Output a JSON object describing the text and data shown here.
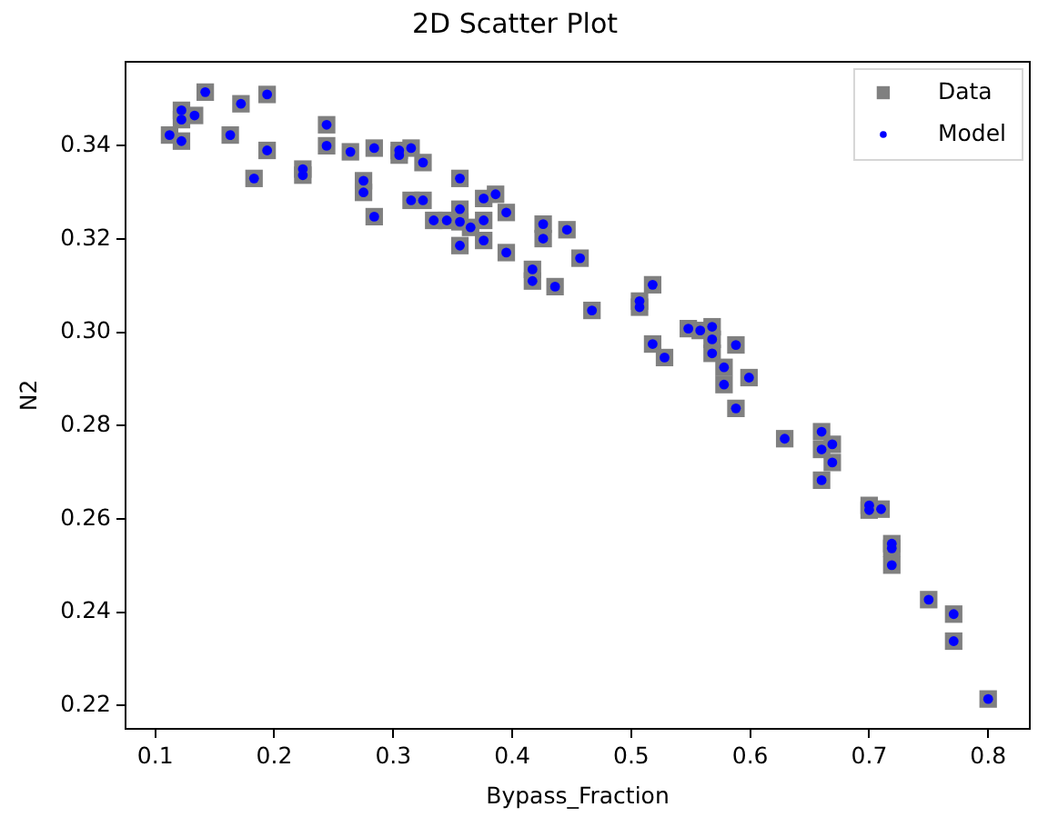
{
  "chart_data": {
    "type": "scatter",
    "title": "2D Scatter Plot",
    "xlabel": "Bypass_Fraction",
    "ylabel": "N2",
    "x": [
      0.142,
      0.172,
      0.194,
      0.122,
      0.122,
      0.133,
      0.112,
      0.122,
      0.163,
      0.194,
      0.183,
      0.224,
      0.224,
      0.244,
      0.244,
      0.264,
      0.284,
      0.275,
      0.275,
      0.284,
      0.305,
      0.305,
      0.315,
      0.325,
      0.315,
      0.325,
      0.334,
      0.345,
      0.356,
      0.376,
      0.386,
      0.395,
      0.356,
      0.356,
      0.365,
      0.376,
      0.376,
      0.356,
      0.395,
      0.426,
      0.426,
      0.446,
      0.457,
      0.417,
      0.417,
      0.436,
      0.467,
      0.507,
      0.507,
      0.518,
      0.548,
      0.558,
      0.568,
      0.568,
      0.568,
      0.518,
      0.528,
      0.578,
      0.578,
      0.588,
      0.599,
      0.588,
      0.629,
      0.66,
      0.66,
      0.669,
      0.669,
      0.66,
      0.7,
      0.7,
      0.71,
      0.719,
      0.719,
      0.719,
      0.75,
      0.771,
      0.771,
      0.8
    ],
    "series": [
      {
        "name": "Data",
        "color": "#808080",
        "marker": "square",
        "values": [
          0.3515,
          0.349,
          0.351,
          0.3476,
          0.3456,
          0.3465,
          0.3423,
          0.341,
          0.3423,
          0.339,
          0.333,
          0.335,
          0.3337,
          0.3445,
          0.34,
          0.3387,
          0.3395,
          0.3325,
          0.33,
          0.3248,
          0.339,
          0.338,
          0.3395,
          0.3364,
          0.3283,
          0.3283,
          0.324,
          0.324,
          0.333,
          0.3287,
          0.3296,
          0.3257,
          0.3264,
          0.3237,
          0.3225,
          0.324,
          0.3197,
          0.3186,
          0.3171,
          0.3232,
          0.3201,
          0.322,
          0.3159,
          0.3135,
          0.311,
          0.3098,
          0.3047,
          0.3067,
          0.3054,
          0.3102,
          0.3008,
          0.3004,
          0.3012,
          0.2985,
          0.2955,
          0.2975,
          0.2946,
          0.2925,
          0.2888,
          0.2973,
          0.2903,
          0.2837,
          0.2772,
          0.2787,
          0.2749,
          0.276,
          0.2721,
          0.2683,
          0.2629,
          0.2619,
          0.2621,
          0.2547,
          0.2537,
          0.2501,
          0.2427,
          0.2396,
          0.2338,
          0.2214
        ]
      },
      {
        "name": "Model",
        "color": "#0000ff",
        "marker": "circle",
        "values": [
          0.3515,
          0.349,
          0.351,
          0.3476,
          0.3456,
          0.3465,
          0.3423,
          0.341,
          0.3423,
          0.339,
          0.333,
          0.335,
          0.3337,
          0.3445,
          0.34,
          0.3387,
          0.3395,
          0.3325,
          0.33,
          0.3248,
          0.339,
          0.338,
          0.3395,
          0.3364,
          0.3283,
          0.3283,
          0.324,
          0.324,
          0.333,
          0.3287,
          0.3296,
          0.3257,
          0.3264,
          0.3237,
          0.3225,
          0.324,
          0.3197,
          0.3186,
          0.3171,
          0.3232,
          0.3201,
          0.322,
          0.3159,
          0.3135,
          0.311,
          0.3098,
          0.3047,
          0.3067,
          0.3054,
          0.3102,
          0.3008,
          0.3004,
          0.3012,
          0.2985,
          0.2955,
          0.2975,
          0.2946,
          0.2925,
          0.2888,
          0.2973,
          0.2903,
          0.2837,
          0.2772,
          0.2787,
          0.2749,
          0.276,
          0.2721,
          0.2683,
          0.2629,
          0.2619,
          0.2621,
          0.2547,
          0.2537,
          0.2501,
          0.2427,
          0.2396,
          0.2338,
          0.2214
        ]
      }
    ],
    "xlim": [
      0.075,
      0.835
    ],
    "ylim": [
      0.215,
      0.358
    ],
    "xticks": [
      0.1,
      0.2,
      0.3,
      0.4,
      0.5,
      0.6,
      0.7,
      0.8
    ],
    "yticks": [
      0.22,
      0.24,
      0.26,
      0.28,
      {
        "value": 0.3,
        "label": "0.30"
      },
      0.32,
      0.34
    ],
    "legend": "top right"
  }
}
